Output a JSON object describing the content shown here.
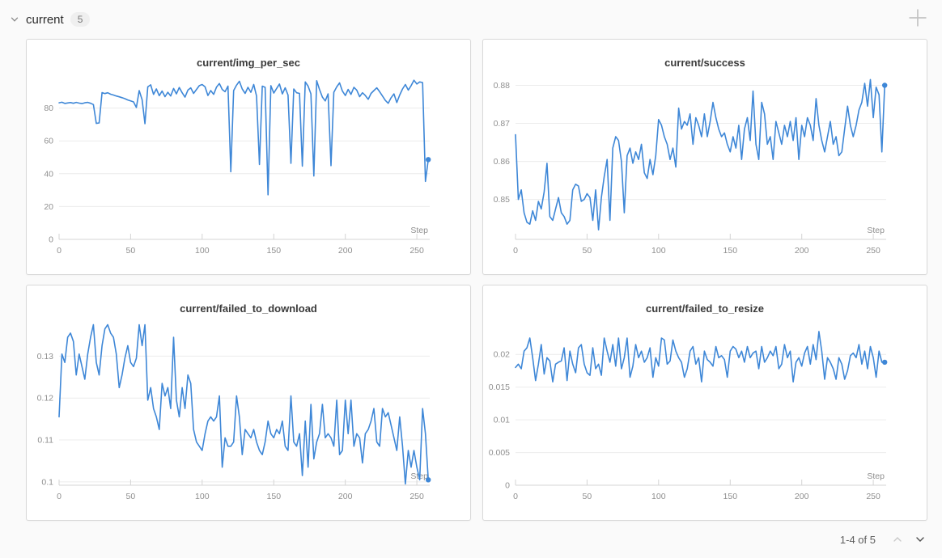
{
  "header": {
    "section_label": "current",
    "panel_count": "5",
    "collapse_icon": "chevron-down-icon",
    "add_icon": "plus-icon"
  },
  "pagination": {
    "label": "1-4 of 5",
    "prev_icon": "chevron-up-icon",
    "next_icon": "chevron-down-icon",
    "prev_enabled": false,
    "next_enabled": true
  },
  "colors": {
    "page_background": "#fafafa",
    "panel_background": "#ffffff",
    "panel_border": "#d9d9d9",
    "line_blue": "#3e87d7",
    "grid": "#ececec",
    "axis": "#d4d4d4",
    "tick_text": "#8f8f8f",
    "title_text": "#3a3a3a"
  },
  "chart_data": [
    {
      "type": "line",
      "title": "current/img_per_sec",
      "xlabel": "Step",
      "legend": null,
      "grid": "horizontal-only",
      "x_ticks": [
        0,
        50,
        100,
        150,
        200,
        250
      ],
      "y_ticks": [
        0,
        20,
        40,
        60,
        80
      ],
      "xlim": [
        0,
        259
      ],
      "ylim": [
        0,
        98
      ],
      "x_start": 0,
      "x_step": 2,
      "color": "#3e87d7",
      "end_dot": true,
      "values": [
        83.2,
        83.5,
        82.8,
        83.1,
        83.3,
        82.9,
        83.4,
        83.0,
        82.7,
        83.2,
        83.4,
        82.9,
        82.1,
        70.6,
        70.9,
        89.4,
        88.8,
        89.3,
        88.4,
        87.9,
        87.3,
        86.8,
        86.3,
        85.7,
        84.9,
        84.3,
        83.7,
        80.3,
        90.6,
        85.1,
        70.4,
        92.9,
        94.1,
        88.3,
        91.6,
        87.5,
        90.3,
        86.9,
        89.6,
        87.3,
        91.9,
        88.6,
        92.5,
        89.3,
        86.6,
        90.9,
        92.3,
        88.9,
        91.3,
        93.6,
        94.3,
        92.9,
        87.6,
        90.6,
        88.3,
        92.7,
        94.9,
        91.3,
        89.9,
        93.3,
        41.2,
        90.6,
        93.9,
        96.3,
        91.6,
        88.9,
        92.6,
        89.6,
        94.3,
        87.3,
        45.6,
        93.3,
        92.6,
        27.2,
        93.6,
        89.1,
        91.9,
        94.6,
        88.6,
        92.3,
        87.9,
        46.3,
        91.6,
        89.3,
        88.9,
        44.6,
        95.9,
        93.3,
        88.6,
        38.6,
        96.6,
        91.3,
        86.6,
        84.3,
        88.6,
        44.9,
        89.6,
        92.9,
        95.3,
        90.3,
        87.6,
        91.3,
        88.3,
        92.6,
        90.9,
        86.9,
        89.3,
        87.6,
        85.3,
        88.9,
        90.6,
        92.3,
        89.9,
        87.3,
        84.6,
        82.9,
        86.3,
        88.6,
        83.3,
        87.9,
        91.6,
        94.3,
        90.9,
        93.6,
        96.9,
        94.6,
        95.9,
        95.5,
        35.3,
        48.6
      ]
    },
    {
      "type": "line",
      "title": "current/success",
      "xlabel": "Step",
      "legend": null,
      "grid": "horizontal-only",
      "x_ticks": [
        0,
        50,
        100,
        150,
        200,
        250
      ],
      "y_ticks": [
        0.85,
        0.86,
        0.87,
        0.88
      ],
      "xlim": [
        0,
        259
      ],
      "ylim": [
        0.8395,
        0.8818
      ],
      "x_start": 0,
      "x_step": 2,
      "color": "#3e87d7",
      "end_dot": true,
      "values": [
        0.867,
        0.85,
        0.8525,
        0.8465,
        0.844,
        0.8435,
        0.847,
        0.8445,
        0.8495,
        0.8475,
        0.852,
        0.8595,
        0.8455,
        0.8445,
        0.8475,
        0.8505,
        0.8465,
        0.8455,
        0.8435,
        0.8445,
        0.8525,
        0.854,
        0.8535,
        0.8495,
        0.85,
        0.8515,
        0.8505,
        0.8445,
        0.8525,
        0.842,
        0.8505,
        0.856,
        0.8605,
        0.8445,
        0.8635,
        0.8665,
        0.8655,
        0.86,
        0.8465,
        0.8615,
        0.8635,
        0.8595,
        0.8625,
        0.8605,
        0.8645,
        0.857,
        0.8555,
        0.8605,
        0.8565,
        0.8615,
        0.871,
        0.8695,
        0.8665,
        0.8645,
        0.8605,
        0.8635,
        0.8585,
        0.874,
        0.8685,
        0.8705,
        0.8695,
        0.8725,
        0.8645,
        0.8715,
        0.8695,
        0.8665,
        0.8725,
        0.8665,
        0.8705,
        0.8755,
        0.8715,
        0.8685,
        0.8665,
        0.8675,
        0.8645,
        0.8625,
        0.8665,
        0.8635,
        0.8695,
        0.8605,
        0.8685,
        0.8715,
        0.8655,
        0.8785,
        0.8645,
        0.8605,
        0.8755,
        0.8725,
        0.8645,
        0.8665,
        0.8605,
        0.8705,
        0.8675,
        0.8645,
        0.8695,
        0.8665,
        0.8705,
        0.8655,
        0.8715,
        0.8605,
        0.8695,
        0.8665,
        0.8715,
        0.8695,
        0.8655,
        0.8765,
        0.8695,
        0.8655,
        0.8625,
        0.8665,
        0.8705,
        0.8645,
        0.8665,
        0.8615,
        0.8625,
        0.8685,
        0.8745,
        0.8695,
        0.8665,
        0.8695,
        0.8735,
        0.8755,
        0.8805,
        0.8745,
        0.8815,
        0.8715,
        0.8795,
        0.8775,
        0.8625,
        0.88
      ]
    },
    {
      "type": "line",
      "title": "current/failed_to_download",
      "xlabel": "Step",
      "legend": null,
      "grid": "horizontal-only",
      "x_ticks": [
        0,
        50,
        100,
        150,
        200,
        250
      ],
      "y_ticks": [
        0.1,
        0.11,
        0.12,
        0.13
      ],
      "xlim": [
        0,
        259
      ],
      "ylim": [
        0.0992,
        0.1376
      ],
      "x_start": 0,
      "x_step": 2,
      "color": "#3e87d7",
      "end_dot": true,
      "values": [
        0.1155,
        0.1305,
        0.1285,
        0.1345,
        0.1355,
        0.1335,
        0.1255,
        0.1305,
        0.1275,
        0.1245,
        0.1305,
        0.1345,
        0.1375,
        0.1285,
        0.1255,
        0.1325,
        0.1365,
        0.1375,
        0.1355,
        0.1345,
        0.1305,
        0.1225,
        0.1255,
        0.1295,
        0.1325,
        0.1285,
        0.1275,
        0.1295,
        0.1375,
        0.1325,
        0.1375,
        0.1195,
        0.1225,
        0.1175,
        0.1155,
        0.1125,
        0.1235,
        0.1205,
        0.1225,
        0.1175,
        0.1345,
        0.1195,
        0.1155,
        0.1225,
        0.1175,
        0.1255,
        0.1235,
        0.1125,
        0.1095,
        0.1085,
        0.1075,
        0.1115,
        0.1145,
        0.1155,
        0.1145,
        0.1155,
        0.1205,
        0.1035,
        0.1105,
        0.1085,
        0.1085,
        0.1095,
        0.1205,
        0.1155,
        0.1065,
        0.1125,
        0.1115,
        0.1105,
        0.1125,
        0.1095,
        0.1075,
        0.1065,
        0.1095,
        0.1145,
        0.1115,
        0.1105,
        0.1125,
        0.1115,
        0.1145,
        0.1085,
        0.1075,
        0.1205,
        0.1095,
        0.1085,
        0.1115,
        0.1015,
        0.1145,
        0.1035,
        0.1185,
        0.1055,
        0.1095,
        0.1115,
        0.1185,
        0.1105,
        0.1115,
        0.1105,
        0.1085,
        0.1195,
        0.1065,
        0.1075,
        0.1195,
        0.1115,
        0.1195,
        0.1085,
        0.1115,
        0.1105,
        0.1045,
        0.1115,
        0.1125,
        0.1145,
        0.1175,
        0.1095,
        0.1085,
        0.1175,
        0.1155,
        0.1165,
        0.1135,
        0.1105,
        0.1075,
        0.1155,
        0.1085,
        0.0995,
        0.1075,
        0.1035,
        0.1075,
        0.1035,
        0.1005,
        0.1175,
        0.1115,
        0.1005
      ]
    },
    {
      "type": "line",
      "title": "current/failed_to_resize",
      "xlabel": "Step",
      "legend": null,
      "grid": "horizontal-only",
      "x_ticks": [
        0,
        50,
        100,
        150,
        200,
        250
      ],
      "y_ticks": [
        0,
        0.005,
        0.01,
        0.015,
        0.02
      ],
      "xlim": [
        0,
        259
      ],
      "ylim": [
        0,
        0.0246
      ],
      "x_start": 0,
      "x_step": 2,
      "color": "#3e87d7",
      "end_dot": true,
      "values": [
        0.018,
        0.0185,
        0.0178,
        0.0205,
        0.021,
        0.0225,
        0.0195,
        0.016,
        0.0185,
        0.0215,
        0.017,
        0.0195,
        0.019,
        0.0158,
        0.0185,
        0.0188,
        0.019,
        0.021,
        0.016,
        0.0205,
        0.0185,
        0.0172,
        0.021,
        0.0215,
        0.0185,
        0.0172,
        0.0168,
        0.021,
        0.0178,
        0.0185,
        0.0168,
        0.0225,
        0.0205,
        0.0188,
        0.0215,
        0.0182,
        0.0225,
        0.0178,
        0.0195,
        0.0225,
        0.0165,
        0.0182,
        0.0215,
        0.0195,
        0.0205,
        0.0188,
        0.0195,
        0.021,
        0.0165,
        0.0195,
        0.0182,
        0.0225,
        0.0222,
        0.0185,
        0.019,
        0.0222,
        0.0205,
        0.0195,
        0.0188,
        0.0165,
        0.0178,
        0.0205,
        0.0212,
        0.0185,
        0.0195,
        0.0158,
        0.0205,
        0.0192,
        0.0188,
        0.0182,
        0.0212,
        0.0195,
        0.0198,
        0.0192,
        0.0165,
        0.0205,
        0.0212,
        0.0208,
        0.0195,
        0.0205,
        0.0188,
        0.0212,
        0.0195,
        0.0202,
        0.0205,
        0.0178,
        0.0212,
        0.0188,
        0.0195,
        0.0205,
        0.0198,
        0.0212,
        0.0178,
        0.0185,
        0.0215,
        0.0195,
        0.0205,
        0.0158,
        0.0188,
        0.0195,
        0.0182,
        0.0202,
        0.0212,
        0.0185,
        0.0215,
        0.0192,
        0.0235,
        0.0205,
        0.0162,
        0.0195,
        0.0188,
        0.0178,
        0.0162,
        0.0195,
        0.0185,
        0.0162,
        0.0175,
        0.0198,
        0.0202,
        0.0195,
        0.0215,
        0.0185,
        0.0205,
        0.0178,
        0.0212,
        0.0195,
        0.0165,
        0.0205,
        0.0188,
        0.0188
      ]
    }
  ]
}
